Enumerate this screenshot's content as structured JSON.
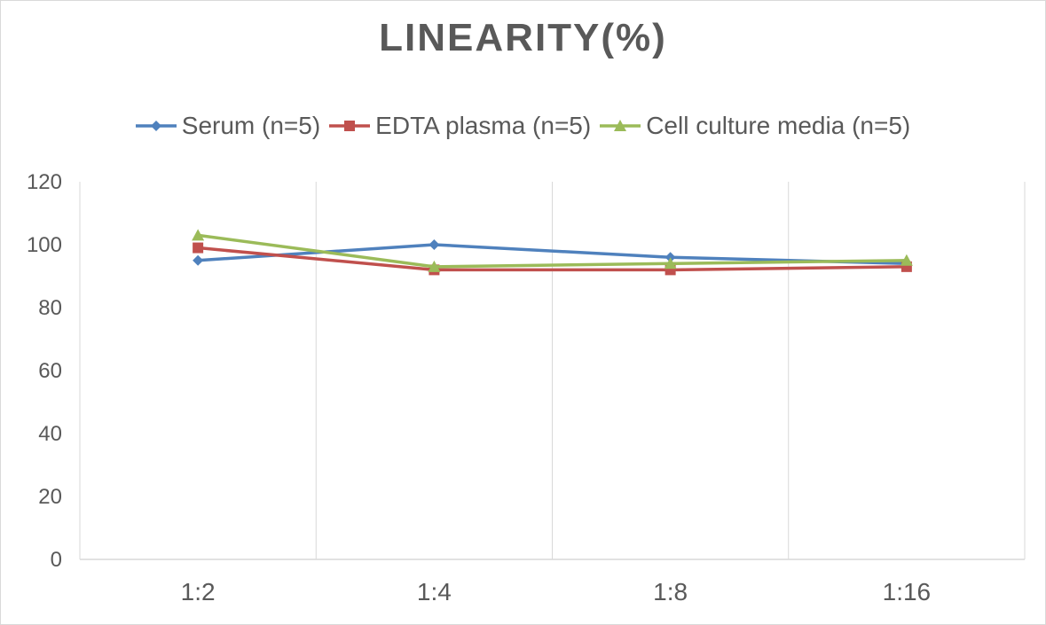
{
  "chart_data": {
    "type": "line",
    "title": "LINEARITY(%)",
    "categories": [
      "1:2",
      "1:4",
      "1:8",
      "1:16"
    ],
    "ylim": [
      0,
      120
    ],
    "yticks": [
      0,
      20,
      40,
      60,
      80,
      100,
      120
    ],
    "grid": "vertical",
    "legend_position": "top",
    "series": [
      {
        "name": "Serum (n=5)",
        "color": "#4f81bd",
        "marker": "diamond",
        "values": [
          95,
          100,
          96,
          94
        ]
      },
      {
        "name": "EDTA plasma (n=5)",
        "color": "#c0504d",
        "marker": "square",
        "values": [
          99,
          92,
          92,
          93
        ]
      },
      {
        "name": "Cell culture media (n=5)",
        "color": "#9bbb59",
        "marker": "triangle",
        "values": [
          103,
          93,
          94,
          95
        ]
      }
    ]
  }
}
